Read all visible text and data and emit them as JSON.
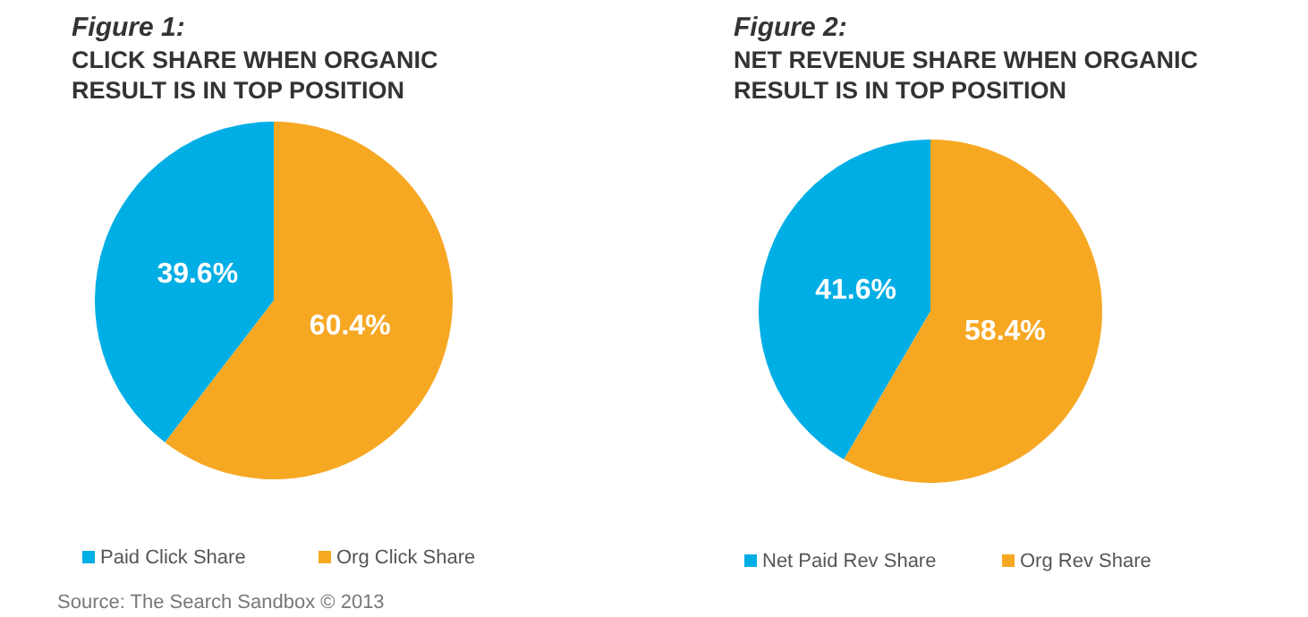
{
  "chart_data": [
    {
      "type": "pie",
      "title": "Figure 1:",
      "subtitle": "CLICK SHARE WHEN ORGANIC RESULT IS IN TOP POSITION",
      "categories": [
        "Paid Click Share",
        "Org Click Share"
      ],
      "values": [
        39.6,
        60.4
      ],
      "colors": [
        "#00aee6",
        "#f7a823"
      ],
      "value_labels": [
        "39.6%",
        "60.4%"
      ],
      "legend": "bottom",
      "annotations": [
        "Source: The Search Sandbox © 2013"
      ]
    },
    {
      "type": "pie",
      "title": "Figure 2:",
      "subtitle": "NET REVENUE SHARE WHEN ORGANIC RESULT IS IN TOP POSITION",
      "categories": [
        "Net Paid Rev Share",
        "Org Rev Share"
      ],
      "values": [
        41.6,
        58.4
      ],
      "colors": [
        "#00aee6",
        "#f7a823"
      ],
      "value_labels": [
        "41.6%",
        "58.4%"
      ],
      "legend": "bottom"
    }
  ]
}
